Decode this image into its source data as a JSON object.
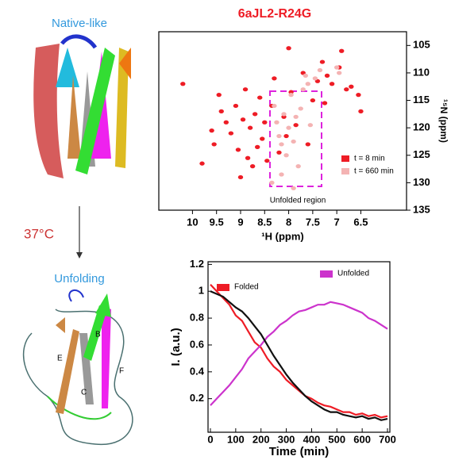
{
  "illustration": {
    "top_label": "Native-like",
    "temperature": "37°C",
    "bottom_label": "Unfolding",
    "strands": [
      "E",
      "B",
      "F",
      "C"
    ]
  },
  "chart_data": [
    {
      "type": "scatter",
      "title": "6aJL2-R24G",
      "x_label": "¹H (ppm)",
      "y_label": "¹⁵N (ppm)",
      "annotation": "Unfolded region",
      "xlim": [
        10.7,
        5.55
      ],
      "xticks": [
        10,
        9.5,
        9,
        8.5,
        8,
        7.5,
        7,
        6.5
      ],
      "ylim": [
        135,
        102.5
      ],
      "yticks": [
        105,
        110,
        115,
        120,
        125,
        130,
        135
      ],
      "series": [
        {
          "name": "t = 8 min",
          "color": "#ee1c25",
          "x": [
            10.2,
            9.6,
            9.55,
            9.4,
            9.3,
            9.2,
            9.1,
            9.05,
            8.95,
            8.9,
            8.8,
            8.75,
            8.7,
            8.6,
            8.55,
            8.5,
            8.45,
            8.35,
            8.3,
            8.2,
            8.1,
            8.05,
            7.95,
            7.85,
            7.7,
            7.6,
            7.5,
            7.4,
            7.3,
            7.2,
            7.1,
            6.95,
            6.8,
            6.7,
            6.55,
            6.5,
            9.8,
            9.0,
            8.65,
            8.0,
            7.25,
            6.9,
            9.45,
            8.85
          ],
          "y": [
            112,
            120.5,
            123,
            117,
            119,
            121,
            116,
            124,
            118.5,
            113,
            120,
            127,
            117.5,
            114.5,
            122,
            119,
            126,
            116,
            111,
            124.5,
            118,
            121.5,
            113.5,
            119.5,
            110,
            123,
            115,
            111.5,
            108,
            110.5,
            112,
            109,
            113,
            112.5,
            114,
            117,
            126.5,
            129,
            123.5,
            105.5,
            115.5,
            106,
            114,
            125.5
          ]
        },
        {
          "name": "t = 660 min",
          "color": "#f4b3b3",
          "x": [
            8.3,
            8.25,
            8.2,
            8.15,
            8.1,
            8.05,
            8.0,
            7.95,
            7.9,
            7.85,
            7.8,
            7.75,
            7.7,
            7.65,
            7.6,
            7.55,
            7.45,
            7.35,
            7.0,
            6.95,
            8.35,
            8.15,
            7.9
          ],
          "y": [
            116,
            119,
            121.5,
            123,
            117.5,
            125,
            120,
            114,
            122.5,
            118,
            127,
            116.5,
            113,
            110.5,
            112,
            119.5,
            111,
            109.5,
            109,
            110,
            130,
            128.5,
            131
          ]
        }
      ]
    },
    {
      "type": "line",
      "x_label": "Time (min)",
      "y_label": "I. (a.u.)",
      "xlim": [
        0,
        700
      ],
      "xticks": [
        0,
        100,
        200,
        300,
        400,
        500,
        600,
        700
      ],
      "ylim": [
        -0.05,
        1.22
      ],
      "yticks": [
        0.2,
        0.4,
        0.6,
        0.8,
        1,
        1.2
      ],
      "x": [
        0,
        25,
        50,
        75,
        100,
        125,
        150,
        175,
        200,
        225,
        250,
        275,
        300,
        325,
        350,
        375,
        400,
        425,
        450,
        475,
        500,
        525,
        550,
        575,
        600,
        625,
        650,
        675,
        700
      ],
      "series": [
        {
          "name": "Folded",
          "color": "#ee1c25",
          "values": [
            1.05,
            1.0,
            0.95,
            0.9,
            0.82,
            0.78,
            0.7,
            0.62,
            0.58,
            0.5,
            0.44,
            0.4,
            0.34,
            0.3,
            0.26,
            0.22,
            0.2,
            0.17,
            0.15,
            0.14,
            0.12,
            0.1,
            0.1,
            0.08,
            0.09,
            0.07,
            0.08,
            0.06,
            0.07
          ]
        },
        {
          "name": "Unfolded",
          "color": "#cc33cc",
          "values": [
            0.15,
            0.2,
            0.25,
            0.3,
            0.36,
            0.42,
            0.5,
            0.55,
            0.6,
            0.66,
            0.7,
            0.75,
            0.78,
            0.82,
            0.85,
            0.86,
            0.88,
            0.9,
            0.9,
            0.92,
            0.91,
            0.9,
            0.88,
            0.86,
            0.84,
            0.8,
            0.78,
            0.75,
            0.72
          ]
        },
        {
          "color": "#111111",
          "values": [
            1.0,
            0.98,
            0.96,
            0.92,
            0.88,
            0.85,
            0.8,
            0.74,
            0.68,
            0.6,
            0.52,
            0.45,
            0.38,
            0.32,
            0.27,
            0.22,
            0.18,
            0.15,
            0.12,
            0.1,
            0.1,
            0.08,
            0.07,
            0.06,
            0.07,
            0.05,
            0.06,
            0.04,
            0.05
          ]
        }
      ]
    }
  ]
}
